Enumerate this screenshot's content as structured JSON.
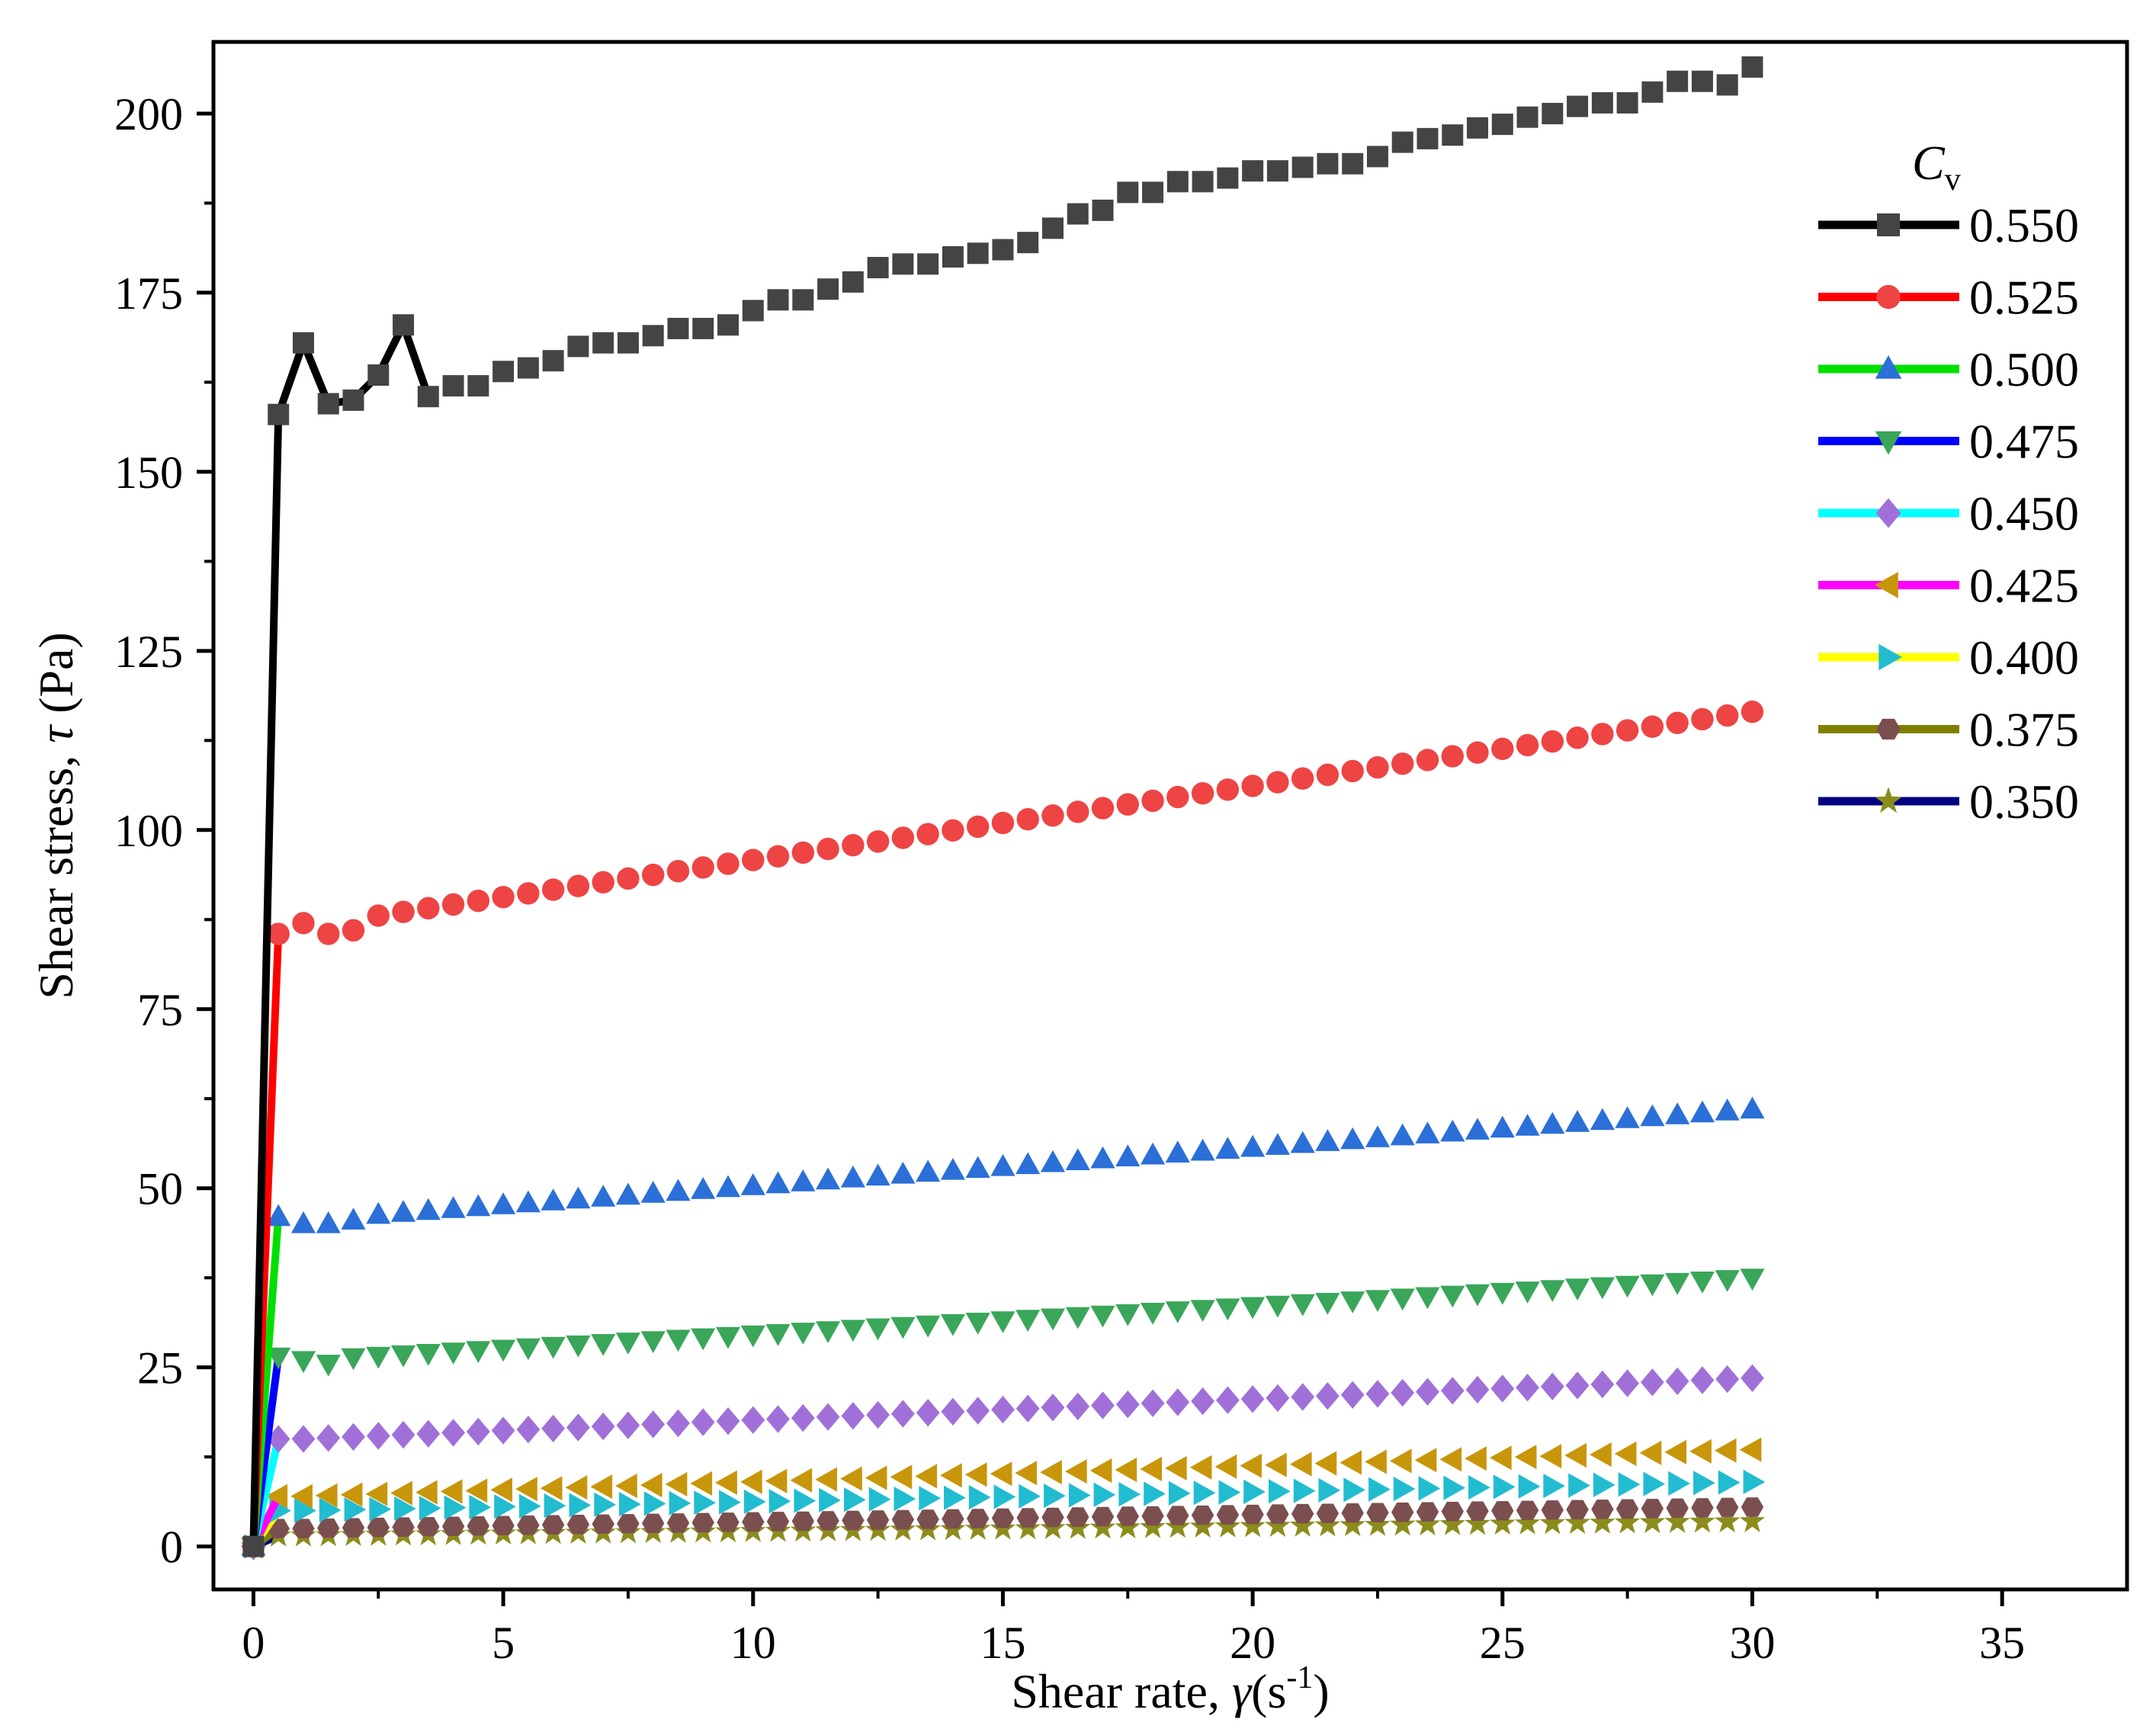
{
  "chart_data": {
    "type": "line",
    "xlabel": {
      "main": "Shear rate, ",
      "symbol": "γ",
      "unit_open": "(s",
      "unit_sup": "-1",
      "unit_close": ")"
    },
    "ylabel": {
      "main": "Shear stress, ",
      "symbol": "τ",
      "unit": " (Pa)"
    },
    "xlim": [
      -0.8,
      37.5
    ],
    "ylim": [
      -6,
      210
    ],
    "x_ticks": [
      0,
      5,
      10,
      15,
      20,
      25,
      30,
      35
    ],
    "y_ticks": [
      0,
      25,
      50,
      75,
      100,
      125,
      150,
      175,
      200
    ],
    "grid": false,
    "legend": {
      "title_main": "C",
      "title_sub": "v",
      "position": "top-right"
    },
    "series": [
      {
        "name": "0.550",
        "line_color": "#000000",
        "marker": "square",
        "marker_color": "#444444",
        "points": [
          [
            0,
            0
          ],
          [
            0.5,
            158
          ],
          [
            1,
            168
          ],
          [
            1.5,
            159.5
          ],
          [
            2,
            160
          ],
          [
            2.5,
            163.5
          ],
          [
            3,
            170.5
          ],
          [
            3.5,
            160.5
          ],
          [
            4,
            162
          ],
          [
            4.5,
            162
          ],
          [
            5,
            164
          ],
          [
            5.5,
            164.5
          ],
          [
            6,
            165.5
          ],
          [
            6.5,
            167.5
          ],
          [
            7,
            168
          ],
          [
            7.5,
            168
          ],
          [
            8,
            169
          ],
          [
            8.5,
            170
          ],
          [
            9,
            170
          ],
          [
            9.5,
            170.5
          ],
          [
            10,
            172.5
          ],
          [
            10.5,
            174
          ],
          [
            11,
            174
          ],
          [
            11.5,
            175.5
          ],
          [
            12,
            176.5
          ],
          [
            12.5,
            178.5
          ],
          [
            13,
            179
          ],
          [
            13.5,
            179
          ],
          [
            14,
            180
          ],
          [
            14.5,
            180.5
          ],
          [
            15,
            181
          ],
          [
            15.5,
            182
          ],
          [
            16,
            184
          ],
          [
            16.5,
            186
          ],
          [
            17,
            186.5
          ],
          [
            17.5,
            189
          ],
          [
            18,
            189
          ],
          [
            18.5,
            190.5
          ],
          [
            19,
            190.5
          ],
          [
            19.5,
            191
          ],
          [
            20,
            192
          ],
          [
            20.5,
            192
          ],
          [
            21,
            192.5
          ],
          [
            21.5,
            193
          ],
          [
            22,
            193
          ],
          [
            22.5,
            194
          ],
          [
            23,
            196
          ],
          [
            23.5,
            196.5
          ],
          [
            24,
            197
          ],
          [
            24.5,
            198
          ],
          [
            25,
            198.5
          ],
          [
            25.5,
            199.5
          ],
          [
            26,
            200
          ],
          [
            26.5,
            201
          ],
          [
            27,
            201.5
          ],
          [
            27.5,
            201.5
          ],
          [
            28,
            203
          ],
          [
            28.5,
            204.5
          ],
          [
            29,
            204.5
          ],
          [
            29.5,
            204
          ],
          [
            30,
            206.5
          ]
        ]
      },
      {
        "name": "0.525",
        "line_color": "#ff0000",
        "marker": "circle",
        "marker_color": "#ee4444",
        "linear": {
          "y1": 86.5,
          "y30": 116.5,
          "dips": [
            [
              0.5,
              85.5
            ],
            [
              1.0,
              87.0
            ],
            [
              1.5,
              85.5
            ],
            [
              2.0,
              86.0
            ]
          ]
        }
      },
      {
        "name": "0.500",
        "line_color": "#00e000",
        "marker": "triangle-up",
        "marker_color": "#2b6fd8",
        "linear": {
          "y1": 45.5,
          "y30": 61.0,
          "dips": [
            [
              0.5,
              46.0
            ],
            [
              1.0,
              45.0
            ],
            [
              1.5,
              45.0
            ],
            [
              2.0,
              45.5
            ]
          ]
        }
      },
      {
        "name": "0.475",
        "line_color": "#0000ff",
        "marker": "triangle-down",
        "marker_color": "#3aa65a",
        "linear": {
          "y1": 26.0,
          "y30": 37.5,
          "dips": [
            [
              0.5,
              26.5
            ],
            [
              1.0,
              26.0
            ],
            [
              1.5,
              25.5
            ]
          ]
        }
      },
      {
        "name": "0.450",
        "line_color": "#00ffff",
        "marker": "diamond",
        "marker_color": "#a070d8",
        "linear": {
          "y1": 15.0,
          "y30": 23.5,
          "dips": [
            [
              0.5,
              15.0
            ],
            [
              1.0,
              15.0
            ]
          ]
        }
      },
      {
        "name": "0.425",
        "line_color": "#ff00ff",
        "marker": "triangle-left",
        "marker_color": "#c8960a",
        "linear": {
          "y1": 7.0,
          "y30": 13.5,
          "dips": [
            [
              0.5,
              7.0
            ]
          ]
        }
      },
      {
        "name": "0.400",
        "line_color": "#ffff00",
        "marker": "triangle-right",
        "marker_color": "#22bcd0",
        "linear": {
          "y1": 5.0,
          "y30": 9.0,
          "dips": [
            [
              0.5,
              5.0
            ]
          ]
        }
      },
      {
        "name": "0.375",
        "line_color": "#808000",
        "marker": "hexagon",
        "marker_color": "#7b4f4f",
        "linear": {
          "y1": 2.5,
          "y30": 5.5,
          "dips": [
            [
              0.5,
              2.5
            ]
          ]
        }
      },
      {
        "name": "0.350",
        "line_color": "#000080",
        "marker": "star",
        "marker_color": "#8c8c1c",
        "linear": {
          "y1": 1.5,
          "y30": 3.5,
          "dips": [
            [
              0.5,
              1.5
            ]
          ]
        }
      }
    ]
  }
}
